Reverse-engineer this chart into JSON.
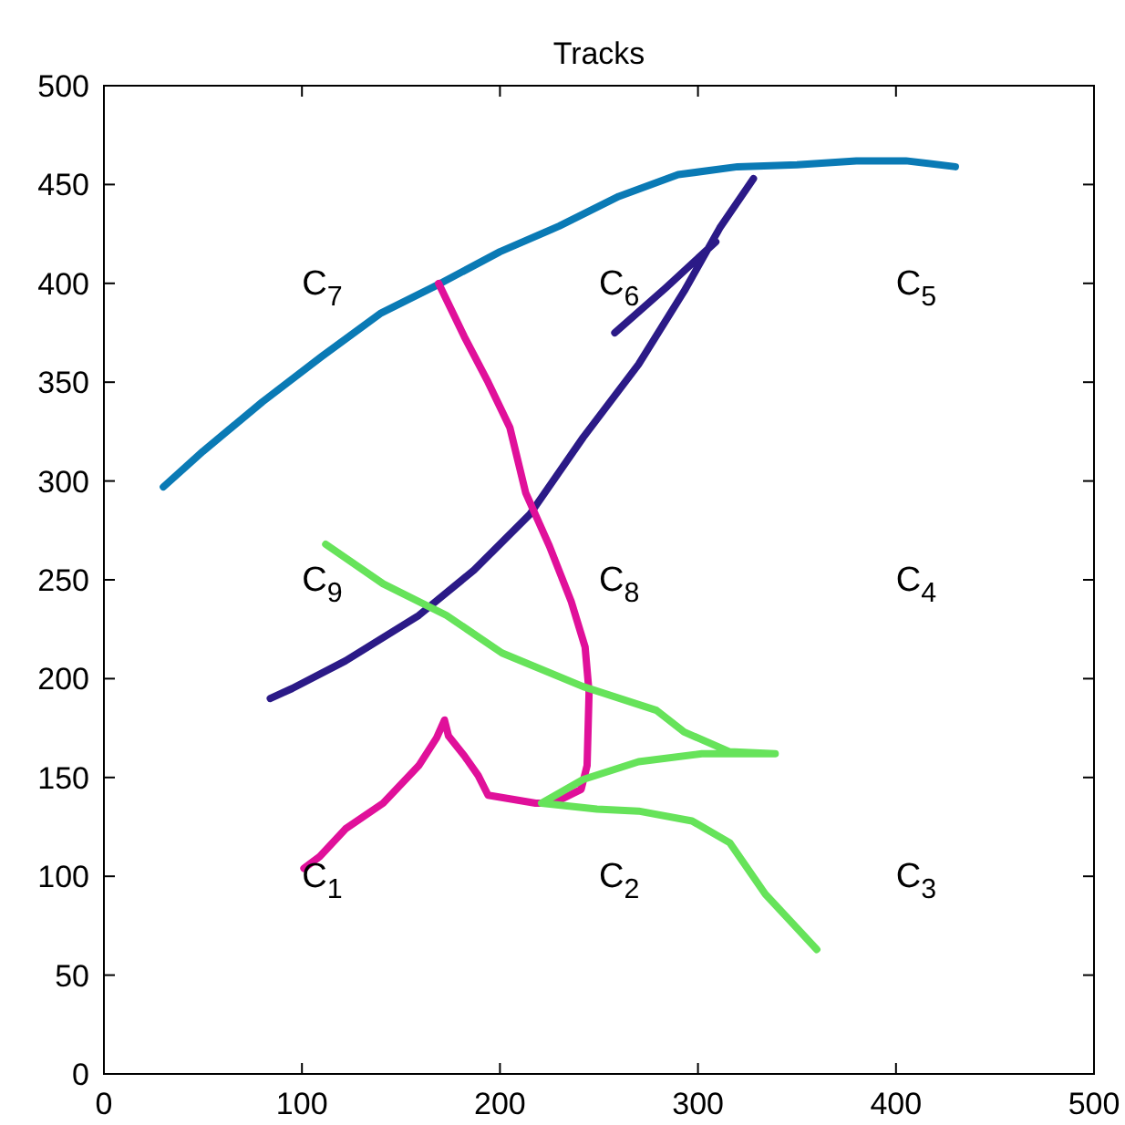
{
  "chart_data": {
    "type": "line",
    "title": "Tracks",
    "xlim": [
      0,
      500
    ],
    "ylim": [
      0,
      500
    ],
    "xticks": [
      0,
      100,
      200,
      300,
      400,
      500
    ],
    "yticks": [
      0,
      50,
      100,
      150,
      200,
      250,
      300,
      350,
      400,
      450,
      500
    ],
    "grid": false,
    "series": [
      {
        "color": "#0a7ab5",
        "x": [
          30,
          50,
          80,
          110,
          140,
          170,
          200,
          230,
          260,
          290,
          320,
          350,
          380,
          405,
          430
        ],
        "values": [
          297,
          315,
          340,
          363,
          385,
          400,
          416,
          429,
          444,
          455,
          459,
          460,
          462,
          462,
          459
        ]
      },
      {
        "color": "#2b1a87",
        "x": [
          84,
          95,
          122,
          159,
          187,
          215,
          242,
          270,
          293,
          311,
          328,
          320,
          258,
          284,
          309
        ],
        "values": [
          190,
          195,
          209,
          232,
          255,
          283,
          322,
          359,
          396,
          428,
          453,
          null,
          375,
          398,
          421
        ]
      },
      {
        "color": "#e0109a",
        "x": [
          169,
          182,
          194,
          205,
          213,
          225,
          236,
          243,
          245,
          244,
          241,
          227,
          218,
          194,
          189,
          182,
          174,
          172,
          168,
          159,
          141,
          122,
          109,
          101
        ],
        "values": [
          400,
          373,
          350,
          327,
          294,
          267,
          239,
          216,
          193,
          156,
          144,
          137,
          137,
          141,
          151,
          161,
          171,
          179,
          170,
          156,
          137,
          124,
          110,
          104
        ]
      },
      {
        "color": "#66e35a",
        "x": [
          112,
          141,
          173,
          201,
          242,
          279,
          293,
          316,
          339,
          302,
          270,
          242,
          221,
          249,
          270,
          297,
          316,
          334,
          360
        ],
        "values": [
          268,
          248,
          232,
          213,
          196,
          184,
          173,
          163,
          162,
          162,
          158,
          149,
          137,
          134,
          133,
          128,
          117,
          91,
          63
        ]
      }
    ],
    "annotations": [
      "C$_{1}$",
      "C$_{2}$",
      "C$_{3}$",
      "C$_{4}$",
      "C$_{5}$",
      "C$_{6}$",
      "C$_{7}$",
      "C$_{8}$",
      "C$_{9}$"
    ]
  }
}
